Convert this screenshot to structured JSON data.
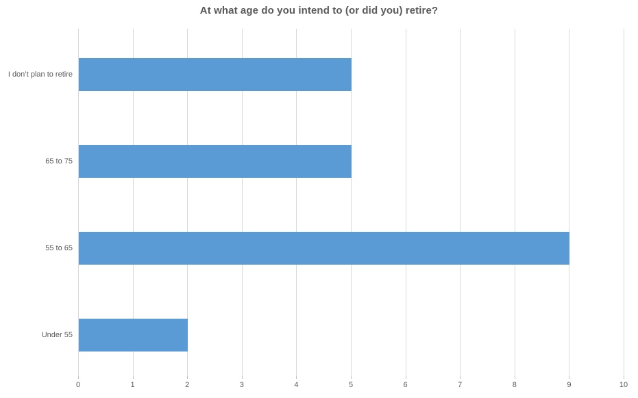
{
  "chart_data": {
    "type": "bar",
    "orientation": "horizontal",
    "title": "At what age do you intend to (or did you) retire?",
    "categories_top_to_bottom": [
      "I don’t plan to retire",
      "65 to 75",
      "55 to 65",
      "Under 55"
    ],
    "values": [
      5,
      5,
      9,
      2
    ],
    "xlabel": "",
    "ylabel": "",
    "xlim": [
      0,
      10
    ],
    "x_ticks": [
      0,
      1,
      2,
      3,
      4,
      5,
      6,
      7,
      8,
      9,
      10
    ],
    "grid": "vertical-gridlines-on",
    "legend_position": "none",
    "colors": {
      "bar": "#5b9bd5",
      "gridline": "#d9d9d9",
      "title_text": "#595959",
      "axis_text": "#595959",
      "background": "#ffffff"
    }
  }
}
